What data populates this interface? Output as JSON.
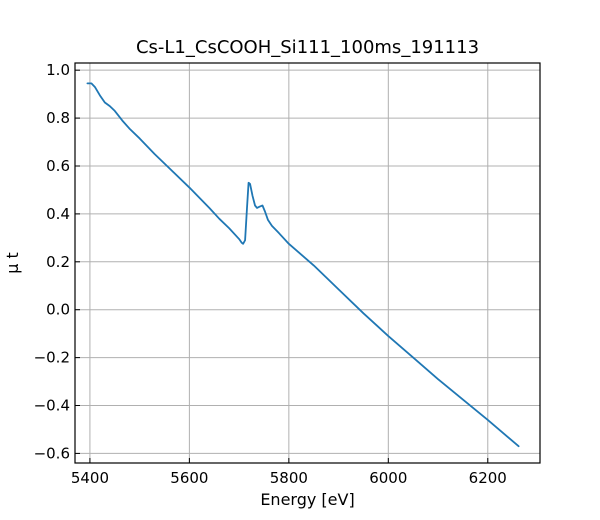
{
  "chart_data": {
    "type": "line",
    "title": "Cs-L1_CsCOOH_Si111_100ms_191113",
    "xlabel": "Energy [eV]",
    "ylabel": "μ t",
    "xlim": [
      5370,
      6305
    ],
    "ylim": [
      -0.64,
      1.03
    ],
    "xticks": [
      5400,
      5600,
      5800,
      6000,
      6200
    ],
    "yticks": [
      1.0,
      0.8,
      0.6,
      0.4,
      0.2,
      0.0,
      -0.2,
      -0.4,
      -0.6
    ],
    "xtick_labels": [
      "5400",
      "5600",
      "5800",
      "6000",
      "6200"
    ],
    "ytick_labels": [
      "1.0",
      "0.8",
      "0.6",
      "0.4",
      "0.2",
      "0.0",
      "−0.2",
      "−0.4",
      "−0.6"
    ],
    "grid": true,
    "color": "#1f77b4",
    "series": [
      {
        "x": [
          5395,
          5403,
          5410,
          5420,
          5430,
          5440,
          5450,
          5465,
          5480,
          5500,
          5530,
          5560,
          5600,
          5640,
          5660,
          5680,
          5700,
          5705,
          5708,
          5712,
          5716,
          5719,
          5722,
          5727,
          5732,
          5736,
          5741,
          5747,
          5752,
          5758,
          5766,
          5780,
          5800,
          5850,
          5900,
          5950,
          6000,
          6050,
          6100,
          6150,
          6200,
          6262
        ],
        "y": [
          0.945,
          0.945,
          0.93,
          0.895,
          0.865,
          0.85,
          0.83,
          0.79,
          0.755,
          0.715,
          0.65,
          0.59,
          0.51,
          0.425,
          0.38,
          0.34,
          0.295,
          0.28,
          0.275,
          0.29,
          0.43,
          0.53,
          0.525,
          0.475,
          0.435,
          0.425,
          0.43,
          0.435,
          0.41,
          0.375,
          0.35,
          0.32,
          0.275,
          0.185,
          0.085,
          -0.015,
          -0.11,
          -0.2,
          -0.29,
          -0.375,
          -0.46,
          -0.57
        ]
      }
    ]
  }
}
